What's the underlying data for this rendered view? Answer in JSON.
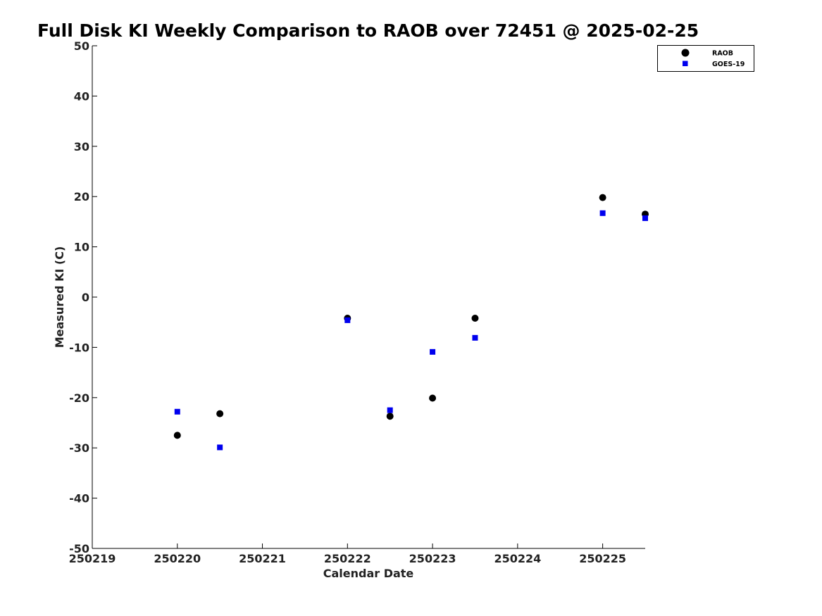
{
  "chart_data": {
    "type": "scatter",
    "title": "Full Disk KI Weekly Comparison to RAOB over 72451 @ 2025-02-25",
    "xlabel": "Calendar Date",
    "ylabel": "Measured KI (C)",
    "xlim": [
      250219,
      250225.5
    ],
    "ylim": [
      -50,
      50
    ],
    "xticks": [
      250219,
      250220,
      250221,
      250222,
      250223,
      250224,
      250225
    ],
    "yticks": [
      50,
      40,
      30,
      20,
      10,
      0,
      -10,
      -20,
      -30,
      -40,
      -50
    ],
    "grid": false,
    "legend_position": "top-right",
    "series": [
      {
        "name": "RAOB",
        "marker": "circle",
        "color": "#000000",
        "x": [
          250220,
          250220.5,
          250222,
          250222.5,
          250223,
          250223.5,
          250225,
          250225.5
        ],
        "y": [
          -27.5,
          -23.2,
          -4.2,
          -23.7,
          -20.1,
          -4.2,
          19.8,
          16.5
        ]
      },
      {
        "name": "GOES-19",
        "marker": "square",
        "color": "#0000ee",
        "x": [
          250220,
          250220.5,
          250222,
          250222.5,
          250223,
          250223.5,
          250225,
          250225.5
        ],
        "y": [
          -22.8,
          -29.9,
          -4.6,
          -22.5,
          -10.9,
          -8.1,
          16.7,
          15.7
        ]
      }
    ]
  }
}
